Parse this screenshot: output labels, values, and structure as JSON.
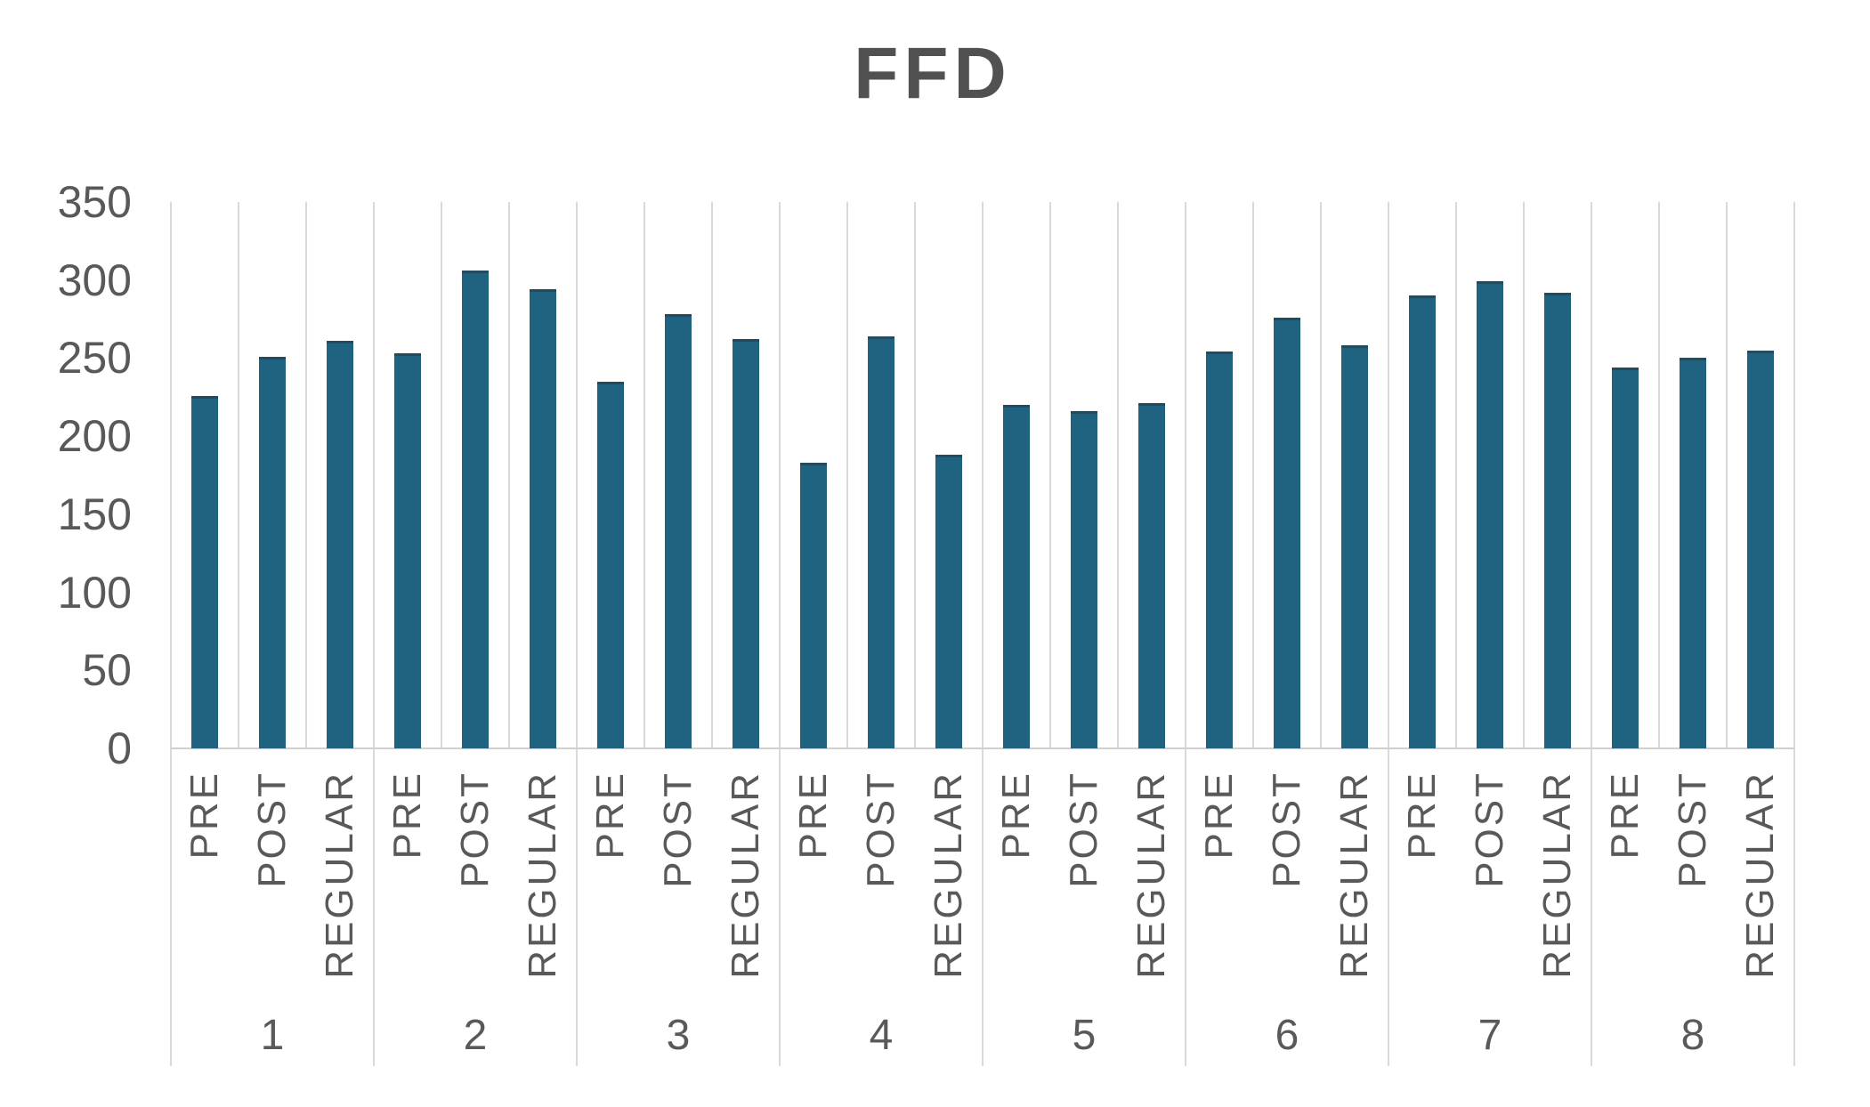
{
  "chart_data": {
    "type": "bar",
    "title": "FFD",
    "xlabel": "",
    "ylabel": "",
    "ylim": [
      0,
      350
    ],
    "yticks": [
      0,
      50,
      100,
      150,
      200,
      250,
      300,
      350
    ],
    "legend": "none",
    "grid": "vertical category gridlines only",
    "bar_color": "#1F6380",
    "gridline_color": "#D9D9D9",
    "text_color": "#595959",
    "title_color": "#515151",
    "categories_per_group": [
      "PRE",
      "POST",
      "REGULAR"
    ],
    "groups": [
      "1",
      "2",
      "3",
      "4",
      "5",
      "6",
      "7",
      "8"
    ],
    "series": [
      {
        "name": "FFD",
        "values_by_group": [
          [
            226,
            251,
            261
          ],
          [
            253,
            306,
            294
          ],
          [
            235,
            278,
            262
          ],
          [
            183,
            264,
            188
          ],
          [
            220,
            216,
            221
          ],
          [
            254,
            276,
            258
          ],
          [
            290,
            299,
            292
          ],
          [
            244,
            250,
            255
          ]
        ]
      }
    ]
  }
}
